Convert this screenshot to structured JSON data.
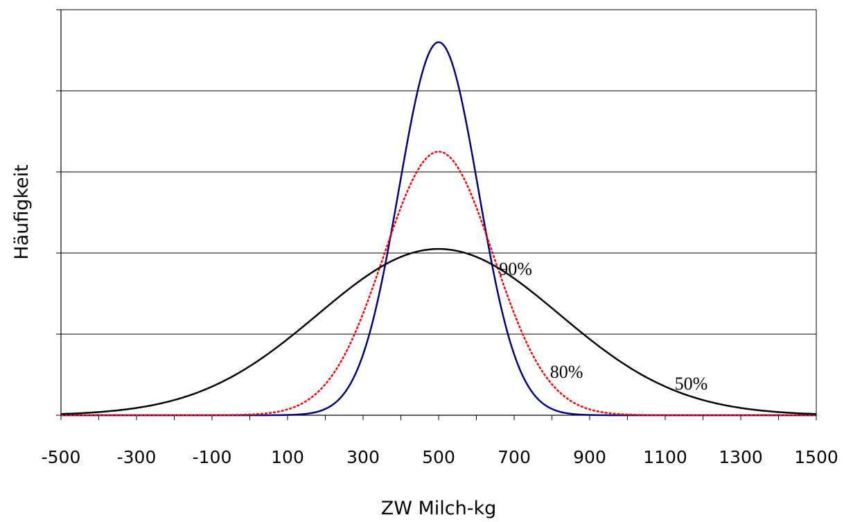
{
  "chart_data": {
    "type": "line",
    "title": "",
    "xlabel": "ZW Milch-kg",
    "ylabel": "Häufigkeit",
    "xlim": [
      -500,
      1500
    ],
    "x_tick_labels": [
      "-500",
      "-300",
      "-100",
      "100",
      "300",
      "500",
      "700",
      "900",
      "1100",
      "1300",
      "1500"
    ],
    "ylim": [
      0,
      5
    ],
    "y_gridlines": [
      1,
      2,
      3,
      4,
      5
    ],
    "grid": "horizontal",
    "legend": "none",
    "mean": 500,
    "series": [
      {
        "name": "90%",
        "color": "#000080",
        "style": "solid",
        "peak": 4.6,
        "sd": 105
      },
      {
        "name": "80%",
        "color": "#ff0000",
        "style": "dashed",
        "peak": 3.25,
        "sd": 145
      },
      {
        "name": "50%",
        "color": "#000000",
        "style": "solid",
        "peak": 2.05,
        "sd": 320
      }
    ]
  }
}
